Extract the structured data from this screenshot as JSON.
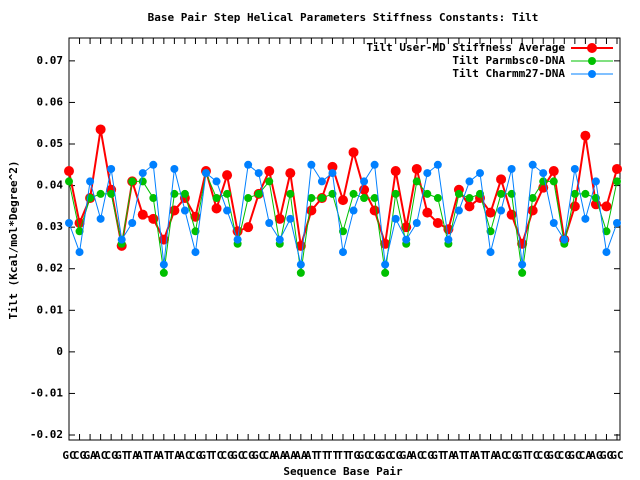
{
  "chart_data": {
    "type": "line",
    "title": "Base Pair Step Helical Parameters Stiffness Constants: Tilt",
    "x_label": "Sequence Base Pair",
    "y_label": "Tilt (Kcal/mol*Degree^2)",
    "categories": [
      "GC",
      "CG",
      "GA",
      "AC",
      "CG",
      "GT",
      "TA",
      "AT",
      "TA",
      "AT",
      "TA",
      "AC",
      "CG",
      "GT",
      "TC",
      "CG",
      "GC",
      "CG",
      "GC",
      "CA",
      "AA",
      "AA",
      "AA",
      "AT",
      "TT",
      "TT",
      "TT",
      "TG",
      "GC",
      "CG",
      "GC",
      "CG",
      "GA",
      "AC",
      "CG",
      "GT",
      "TA",
      "AT",
      "TA",
      "AT",
      "TA",
      "AC",
      "CG",
      "GT",
      "TC",
      "CG",
      "GC",
      "CG",
      "GC",
      "CA",
      "AG",
      "GG",
      "GC"
    ],
    "series": [
      {
        "name": "Tilt User-MD Stiffness Average",
        "color": "#ff0000",
        "values": [
          0.0435,
          0.031,
          0.037,
          0.0535,
          0.039,
          0.0255,
          0.041,
          0.033,
          0.032,
          0.027,
          0.034,
          0.037,
          0.0325,
          0.0435,
          0.0345,
          0.0425,
          0.029,
          0.03,
          0.038,
          0.0435,
          0.032,
          0.043,
          0.0255,
          0.034,
          0.037,
          0.0445,
          0.0365,
          0.048,
          0.039,
          0.034,
          0.026,
          0.0435,
          0.03,
          0.044,
          0.0335,
          0.031,
          0.0295,
          0.039,
          0.035,
          0.037,
          0.0335,
          0.0415,
          0.033,
          0.026,
          0.034,
          0.0395,
          0.0435,
          0.027,
          0.035,
          0.052,
          0.0355,
          0.035,
          0.044
        ]
      },
      {
        "name": "Tilt Parmbsc0-DNA",
        "color": "#00c000",
        "values": [
          0.041,
          0.029,
          0.037,
          0.038,
          0.038,
          0.026,
          0.041,
          0.041,
          0.037,
          0.019,
          0.038,
          0.038,
          0.029,
          0.043,
          0.037,
          0.038,
          0.026,
          0.037,
          0.038,
          0.041,
          0.026,
          0.038,
          0.019,
          0.037,
          0.037,
          0.038,
          0.029,
          0.038,
          0.037,
          0.037,
          0.019,
          0.038,
          0.026,
          0.041,
          0.038,
          0.037,
          0.026,
          0.038,
          0.037,
          0.038,
          0.029,
          0.038,
          0.038,
          0.019,
          0.037,
          0.041,
          0.041,
          0.026,
          0.038,
          0.038,
          0.037,
          0.029,
          0.041
        ]
      },
      {
        "name": "Tilt Charmm27-DNA",
        "color": "#0080ff",
        "values": [
          0.031,
          0.024,
          0.041,
          0.032,
          0.044,
          0.027,
          0.031,
          0.043,
          0.045,
          0.021,
          0.044,
          0.034,
          0.024,
          0.043,
          0.041,
          0.034,
          0.027,
          0.045,
          0.043,
          0.031,
          0.027,
          0.032,
          0.021,
          0.045,
          0.041,
          0.043,
          0.024,
          0.034,
          0.041,
          0.045,
          0.021,
          0.032,
          0.027,
          0.031,
          0.043,
          0.045,
          0.027,
          0.034,
          0.041,
          0.043,
          0.024,
          0.034,
          0.044,
          0.021,
          0.045,
          0.043,
          0.031,
          0.027,
          0.044,
          0.032,
          0.041,
          0.024,
          0.031
        ]
      }
    ],
    "ylim": [
      -0.0212,
      0.0755
    ],
    "yticks": [
      -0.02,
      -0.01,
      0,
      0.01,
      0.02,
      0.03,
      0.04,
      0.05,
      0.06,
      0.07
    ],
    "legend": "top-right"
  }
}
